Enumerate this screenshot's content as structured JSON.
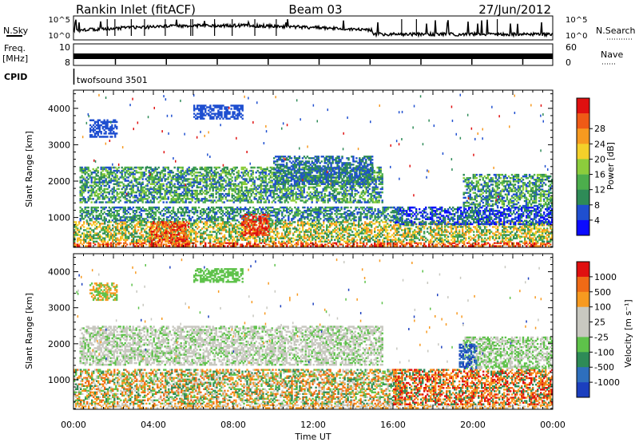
{
  "header": {
    "station": "Rankin Inlet (fitACF)",
    "beam": "Beam 03",
    "date": "27/Jun/2012"
  },
  "panels": {
    "nsky": {
      "label": "N.Sky",
      "ticks": [
        "10^5",
        "10^0"
      ],
      "right_label": "N.Search",
      "right_ticks": [
        "10^5",
        "10^0"
      ]
    },
    "freq": {
      "label_line1": "Freq.",
      "label_line2": "[MHz]",
      "ticks": [
        "10",
        "8"
      ],
      "right_label": "Nave",
      "right_ticks": [
        "60",
        "0"
      ]
    },
    "cpid": {
      "label": "CPID",
      "program": "twofsound 3501"
    }
  },
  "chart_data": [
    {
      "type": "heatmap",
      "name": "power",
      "ylabel": "Slant Range [km]",
      "xlabel": "",
      "x_range_hours": [
        0,
        24
      ],
      "ylim": [
        180,
        4500
      ],
      "yticks": [
        1000,
        2000,
        3000,
        4000
      ],
      "colorbar": {
        "label": "Power [dB]",
        "ticks": [
          "4",
          "8",
          "12",
          "16",
          "20",
          "24",
          "28"
        ],
        "colors": [
          "#0b0bff",
          "#1f4fd0",
          "#2e8b57",
          "#4cae4c",
          "#8ccd3c",
          "#f4d02a",
          "#f79a20",
          "#ef5a16",
          "#e01010"
        ]
      },
      "bands": [
        {
          "h0": 0.0,
          "h1": 24.0,
          "r0": 200,
          "r1": 320,
          "colors": [
            "#e01010",
            "#ef5a16",
            "#f79a20"
          ]
        },
        {
          "h0": 0.0,
          "h1": 24.0,
          "r0": 320,
          "r1": 900,
          "colors": [
            "#f79a20",
            "#f4d02a",
            "#4cae4c",
            "#2e8b57"
          ]
        },
        {
          "h0": 0.3,
          "h1": 16.5,
          "r0": 900,
          "r1": 1300,
          "colors": [
            "#2e8b57",
            "#1f4fd0",
            "#4cae4c"
          ]
        },
        {
          "h0": 0.3,
          "h1": 15.5,
          "r0": 1400,
          "r1": 2400,
          "colors": [
            "#2e8b57",
            "#4cae4c",
            "#1f4fd0",
            "#8ccd3c"
          ]
        },
        {
          "h0": 16.0,
          "h1": 24.0,
          "r0": 800,
          "r1": 1300,
          "colors": [
            "#1f4fd0",
            "#2e8b57",
            "#0b0bff"
          ]
        },
        {
          "h0": 19.5,
          "h1": 24.0,
          "r0": 1300,
          "r1": 2200,
          "colors": [
            "#2e8b57",
            "#4cae4c",
            "#8ccd3c",
            "#1f4fd0"
          ]
        },
        {
          "h0": 3.8,
          "h1": 5.8,
          "r0": 200,
          "r1": 900,
          "colors": [
            "#e01010",
            "#ef5a16",
            "#f79a20"
          ]
        },
        {
          "h0": 8.4,
          "h1": 9.8,
          "r0": 500,
          "r1": 1100,
          "colors": [
            "#e01010",
            "#ef5a16"
          ]
        },
        {
          "h0": 10.0,
          "h1": 15.0,
          "r0": 1900,
          "r1": 2700,
          "colors": [
            "#1f4fd0",
            "#2e8b57"
          ]
        },
        {
          "h0": 0.8,
          "h1": 2.2,
          "r0": 3200,
          "r1": 3700,
          "colors": [
            "#1f4fd0"
          ]
        },
        {
          "h0": 6.0,
          "h1": 8.5,
          "r0": 3700,
          "r1": 4100,
          "colors": [
            "#1f4fd0"
          ]
        }
      ]
    },
    {
      "type": "heatmap",
      "name": "velocity",
      "ylabel": "Slant Range [km]",
      "xlabel": "Time UT",
      "x_range_hours": [
        0,
        24
      ],
      "xticks": [
        "00:00",
        "04:00",
        "08:00",
        "12:00",
        "16:00",
        "20:00",
        "00:00"
      ],
      "ylim": [
        180,
        4500
      ],
      "yticks": [
        1000,
        2000,
        3000,
        4000
      ],
      "colorbar": {
        "label": "Velocity [m s⁻¹]",
        "ticks": [
          "1000",
          "500",
          "100",
          "25",
          "-25",
          "-100",
          "-500",
          "-1000"
        ],
        "colors": [
          "#1b3fbf",
          "#2e6fbd",
          "#2e8b57",
          "#5ec24a",
          "#c8c8c0",
          "#c8c8c0",
          "#f79a20",
          "#ef6a16",
          "#e01010"
        ]
      },
      "bands": [
        {
          "h0": 0.0,
          "h1": 24.0,
          "r0": 200,
          "r1": 320,
          "colors": [
            "#c8c8c0",
            "#f79a20"
          ]
        },
        {
          "h0": 0.0,
          "h1": 16.5,
          "r0": 320,
          "r1": 1300,
          "colors": [
            "#f79a20",
            "#ef6a16",
            "#2e8b57",
            "#5ec24a",
            "#c8c8c0"
          ]
        },
        {
          "h0": 0.3,
          "h1": 15.5,
          "r0": 1400,
          "r1": 2500,
          "colors": [
            "#c8c8c0",
            "#c8c8c0",
            "#c8c8c0",
            "#5ec24a"
          ]
        },
        {
          "h0": 16.0,
          "h1": 24.0,
          "r0": 300,
          "r1": 1300,
          "colors": [
            "#f79a20",
            "#ef6a16",
            "#2e8b57",
            "#e01010"
          ]
        },
        {
          "h0": 19.5,
          "h1": 24.0,
          "r0": 1300,
          "r1": 2200,
          "colors": [
            "#c8c8c0",
            "#5ec24a"
          ]
        },
        {
          "h0": 19.3,
          "h1": 20.2,
          "r0": 1300,
          "r1": 2000,
          "colors": [
            "#1b3fbf",
            "#2e6fbd"
          ]
        },
        {
          "h0": 0.8,
          "h1": 2.2,
          "r0": 3200,
          "r1": 3700,
          "colors": [
            "#f79a20",
            "#5ec24a"
          ]
        },
        {
          "h0": 6.0,
          "h1": 8.5,
          "r0": 3700,
          "r1": 4100,
          "colors": [
            "#5ec24a"
          ]
        }
      ]
    }
  ]
}
